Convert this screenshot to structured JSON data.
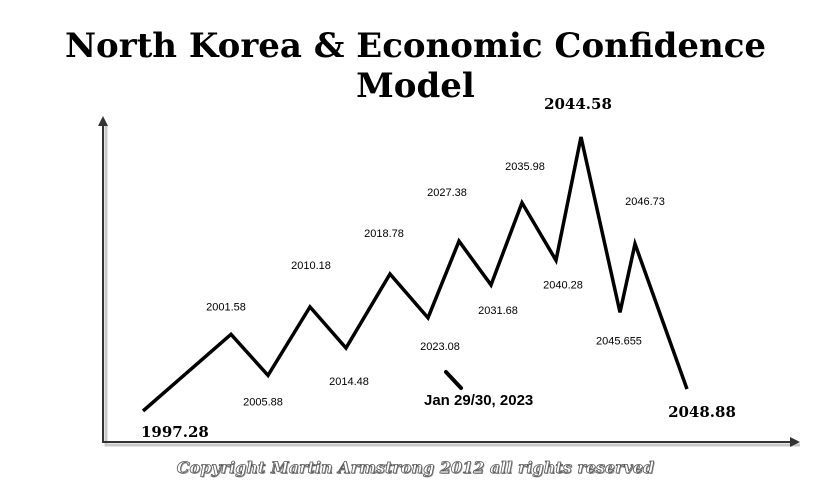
{
  "title": "North Korea & Economic Confidence Model",
  "copyright": "Copyright Martin Armstrong 2012 all rights reserved",
  "chart_data": {
    "type": "line",
    "title": "North Korea & Economic Confidence Model",
    "xlabel": "",
    "ylabel": "",
    "points": [
      {
        "label": "1997.28",
        "kind": "low",
        "level": 0.0
      },
      {
        "label": "2001.58",
        "kind": "high",
        "level": 0.28
      },
      {
        "label": "2005.88",
        "kind": "low",
        "level": 0.13
      },
      {
        "label": "2010.18",
        "kind": "high",
        "level": 0.38
      },
      {
        "label": "2014.48",
        "kind": "low",
        "level": 0.23
      },
      {
        "label": "2018.78",
        "kind": "high",
        "level": 0.5
      },
      {
        "label": "2023.08",
        "kind": "low",
        "level": 0.34
      },
      {
        "label": "2027.38",
        "kind": "high",
        "level": 0.62
      },
      {
        "label": "2031.68",
        "kind": "low",
        "level": 0.46
      },
      {
        "label": "2035.98",
        "kind": "high",
        "level": 0.76
      },
      {
        "label": "2040.28",
        "kind": "low",
        "level": 0.55
      },
      {
        "label": "2044.58",
        "kind": "high",
        "level": 1.0
      },
      {
        "label": "2045.655",
        "kind": "low",
        "level": 0.36
      },
      {
        "label": "2046.73",
        "kind": "high",
        "level": 0.61
      },
      {
        "label": "2048.88",
        "kind": "low",
        "level": 0.08
      }
    ],
    "annotation": {
      "text": "Jan 29/30, 2023",
      "target": "2023.08"
    },
    "grid": false,
    "line_color": "#000000"
  }
}
